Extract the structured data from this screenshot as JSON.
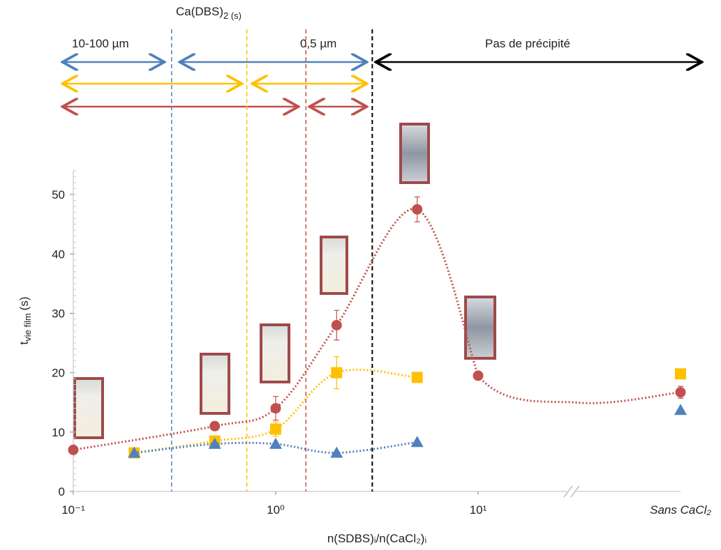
{
  "chart_data": {
    "type": "scatter",
    "y_label": "t",
    "y_label_sub": "vie film",
    "y_label_unit": "(s)",
    "x_label": "n(SDBS)ᵢ/n(CaCl₂)ᵢ",
    "log_x": true,
    "x": [
      0.1,
      0.2,
      0.5,
      1,
      2,
      5,
      10
    ],
    "extra_category": "Sans CaCl₂",
    "xlim": [
      0.1,
      100
    ],
    "xticks": [
      {
        "value": 0.1,
        "label": "10⁻¹"
      },
      {
        "value": 1,
        "label": "10⁰"
      },
      {
        "value": 10,
        "label": "10¹"
      }
    ],
    "ylim": [
      0,
      54
    ],
    "yticks": [
      0,
      10,
      20,
      30,
      40,
      50
    ],
    "series": [
      {
        "color": "#c0504d",
        "marker": "circle",
        "values": [
          7,
          null,
          11,
          14,
          28,
          47.5,
          19.5
        ],
        "errors": [
          null,
          null,
          null,
          2,
          2.5,
          2.1,
          null
        ],
        "extra_value": 16.7,
        "extra_error": 1
      },
      {
        "color": "#ffc000",
        "marker": "square",
        "values": [
          null,
          6.5,
          8.5,
          10.5,
          20,
          19.2,
          null
        ],
        "errors": [
          null,
          null,
          null,
          1.2,
          2.7,
          0.8,
          null
        ],
        "extra_value": 19.8,
        "extra_error": null
      },
      {
        "color": "#4f81bd",
        "marker": "triangle",
        "values": [
          null,
          6.5,
          8,
          8,
          6.5,
          8.3,
          null
        ],
        "errors": [
          null,
          null,
          null,
          null,
          null,
          null,
          null
        ],
        "extra_value": 13.7,
        "extra_error": null
      }
    ],
    "boundaries": [
      {
        "x": 0.306,
        "color": "#4f81bd"
      },
      {
        "x": 0.72,
        "color": "#ffc000"
      },
      {
        "x": 1.41,
        "color": "#c0504d"
      },
      {
        "x": 3,
        "color": "#000000"
      }
    ],
    "annotations": {
      "precipitate": "Ca(DBS)",
      "precipitate_sub": "2 (s)",
      "size_large": "10-100 µm",
      "size_small": "0,5 µm",
      "no_precipitate": "Pas de précipité"
    }
  }
}
